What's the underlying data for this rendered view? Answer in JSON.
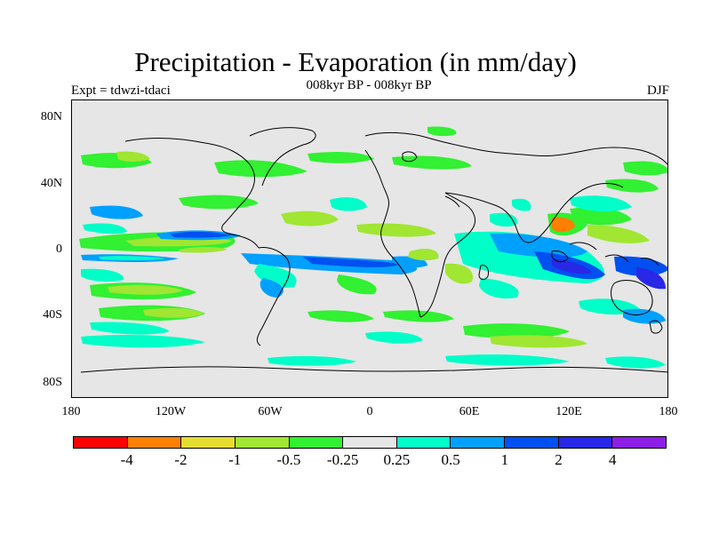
{
  "title": "Precipitation - Evaporation (in mm/day)",
  "subtitle": "008kyr BP - 008kyr BP",
  "experiment": "Expt = tdwzi-tdaci",
  "season": "DJF",
  "map": {
    "background": "#e6e6e6",
    "y_ticks": [
      "80N",
      "40N",
      "0",
      "40S",
      "80S"
    ],
    "x_ticks": [
      "180",
      "120W",
      "60W",
      "0",
      "60E",
      "120E",
      "180"
    ]
  },
  "colorbar": {
    "colors": [
      "#ff0000",
      "#ff8000",
      "#e6dc32",
      "#a0e632",
      "#32f032",
      "#e6e6e6",
      "#00ffc8",
      "#00a0ff",
      "#0050f0",
      "#2828e6",
      "#8c1ee6"
    ],
    "labels": [
      "-4",
      "-2",
      "-1",
      "-0.5",
      "-0.25",
      "0.25",
      "0.5",
      "1",
      "2",
      "4"
    ]
  },
  "palette": {
    "red": "#ff0000",
    "orange": "#ff8000",
    "yellow": "#e6dc32",
    "lime": "#a0e632",
    "green": "#32f032",
    "cyan": "#00ffc8",
    "sky": "#00a0ff",
    "blue": "#0050f0",
    "darkblue": "#2828e6",
    "purple": "#8c1ee6"
  }
}
